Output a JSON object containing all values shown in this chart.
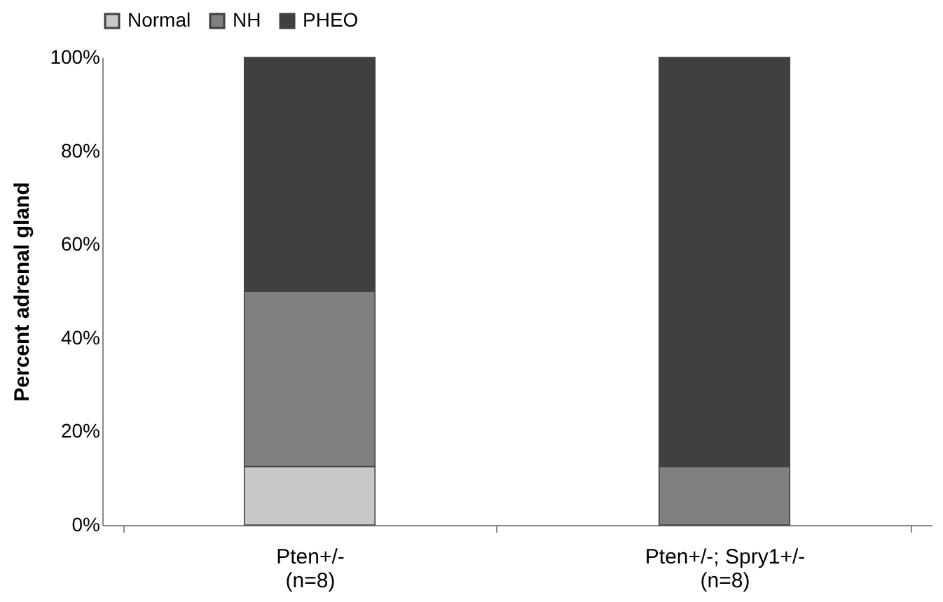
{
  "chart_data": {
    "type": "bar",
    "stacked": true,
    "ylabel": "Percent adrenal gland",
    "categories": [
      "Pten+/-\n(n=8)",
      "Pten+/-; Spry1+/-\n(n=8)"
    ],
    "series": [
      {
        "name": "Normal",
        "color": "#c8c8c8",
        "values": [
          12.5,
          0
        ]
      },
      {
        "name": "NH",
        "color": "#808080",
        "values": [
          37.5,
          12.5
        ]
      },
      {
        "name": "PHEO",
        "color": "#404040",
        "values": [
          50,
          87.5
        ]
      }
    ],
    "ylim": [
      0,
      100
    ],
    "yticks": [
      {
        "value": 0,
        "label": "0%"
      },
      {
        "value": 20,
        "label": "20%"
      },
      {
        "value": 40,
        "label": "40%"
      },
      {
        "value": 60,
        "label": "60%"
      },
      {
        "value": 80,
        "label": "80%"
      },
      {
        "value": 100,
        "label": "100%"
      }
    ],
    "grid": false,
    "legend": "top"
  }
}
